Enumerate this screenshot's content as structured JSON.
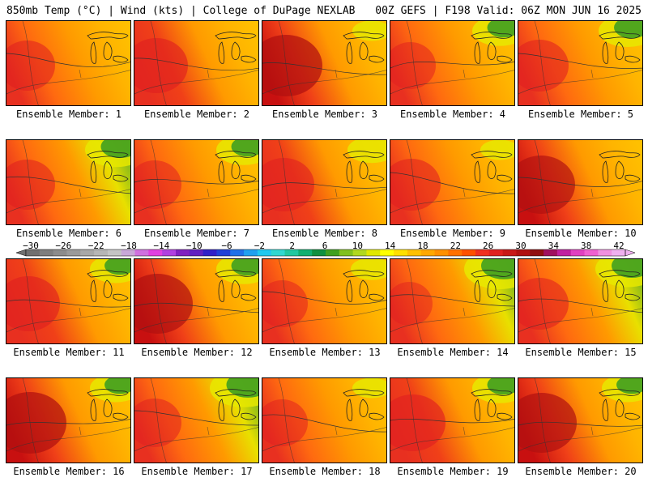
{
  "header": {
    "left": "850mb Temp (°C) | Wind (kts) | College of DuPage NEXLAB",
    "right": "00Z GEFS | F198 Valid: 06Z MON JUN 16 2025"
  },
  "panels": [
    {
      "label": "Ensemble Member: 1",
      "hot": 0.55,
      "cool": 0.05
    },
    {
      "label": "Ensemble Member: 2",
      "hot": 0.7,
      "cool": 0.05
    },
    {
      "label": "Ensemble Member: 3",
      "hot": 0.9,
      "cool": 0.1
    },
    {
      "label": "Ensemble Member: 4",
      "hot": 0.45,
      "cool": 0.35
    },
    {
      "label": "Ensemble Member: 5",
      "hot": 0.6,
      "cool": 0.4
    },
    {
      "label": "Ensemble Member: 6",
      "hot": 0.55,
      "cool": 0.45
    },
    {
      "label": "Ensemble Member: 7",
      "hot": 0.5,
      "cool": 0.35
    },
    {
      "label": "Ensemble Member: 8",
      "hot": 0.65,
      "cool": 0.25
    },
    {
      "label": "Ensemble Member: 9",
      "hot": 0.6,
      "cool": 0.1
    },
    {
      "label": "Ensemble Member: 10",
      "hot": 0.8,
      "cool": 0.05
    },
    {
      "label": "Ensemble Member: 11",
      "hot": 0.7,
      "cool": 0.3
    },
    {
      "label": "Ensemble Member: 12",
      "hot": 0.85,
      "cool": 0.35
    },
    {
      "label": "Ensemble Member: 13",
      "hot": 0.45,
      "cool": 0.15
    },
    {
      "label": "Ensemble Member: 14",
      "hot": 0.35,
      "cool": 0.6
    },
    {
      "label": "Ensemble Member: 15",
      "hot": 0.6,
      "cool": 0.5
    },
    {
      "label": "Ensemble Member: 16",
      "hot": 0.9,
      "cool": 0.3
    },
    {
      "label": "Ensemble Member: 17",
      "hot": 0.5,
      "cool": 0.55
    },
    {
      "label": "Ensemble Member: 18",
      "hot": 0.45,
      "cool": 0.1
    },
    {
      "label": "Ensemble Member: 19",
      "hot": 0.75,
      "cool": 0.35
    },
    {
      "label": "Ensemble Member: 20",
      "hot": 0.85,
      "cool": 0.3
    }
  ],
  "colorbar": {
    "labels": [
      "−30",
      "−26",
      "−22",
      "−18",
      "−14",
      "−10",
      "−6",
      "−2",
      "2",
      "6",
      "10",
      "14",
      "18",
      "22",
      "26",
      "30",
      "34",
      "38",
      "42"
    ],
    "colors": [
      "#707070",
      "#7e7e7e",
      "#8c8c8c",
      "#9a9a9a",
      "#a8a8a8",
      "#b6b6b6",
      "#c4c4c4",
      "#c8a8d8",
      "#d070e0",
      "#e040e0",
      "#b040e0",
      "#8020c0",
      "#6020c0",
      "#3020c8",
      "#2040d8",
      "#2070e8",
      "#20a0f0",
      "#20c8f0",
      "#30d8d0",
      "#20c8a0",
      "#10b070",
      "#109040",
      "#40a020",
      "#80c020",
      "#b0d820",
      "#e0e800",
      "#ffff00",
      "#ffe000",
      "#ffc000",
      "#ffa800",
      "#ff9000",
      "#ff7000",
      "#ff5000",
      "#f03020",
      "#e02020",
      "#c81818",
      "#b01010",
      "#901010",
      "#a01060",
      "#c020a0",
      "#e040c0",
      "#f060d0",
      "#f090e0",
      "#f0b0f0"
    ]
  }
}
